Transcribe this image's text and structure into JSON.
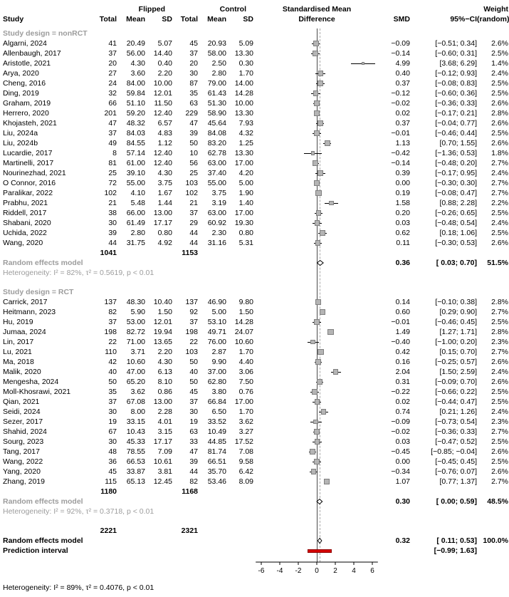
{
  "header": {
    "study": "Study",
    "flipped": "Flipped",
    "control": "Control",
    "total": "Total",
    "mean": "Mean",
    "sd": "SD",
    "effect_line1": "Standardised Mean",
    "effect_line2": "Difference",
    "smd": "SMD",
    "ci": "95%−CI",
    "weight_line1": "Weight",
    "weight_line2": "(random)"
  },
  "chart_data": {
    "type": "forest",
    "effect_label": "Standardised Mean Difference",
    "x_ticks": [
      -6,
      -4,
      -2,
      0,
      2,
      4,
      6
    ],
    "x_range": [
      -6.6,
      6.6
    ],
    "reference_line": 0,
    "overall_effect_line": 0.32,
    "colors": {
      "square": "#b4b4b4",
      "square_border": "#808080",
      "prediction_bar": "#d40000",
      "gray_text": "#9c9c9c"
    },
    "study_columns": [
      "study",
      "flipped_total",
      "flipped_mean",
      "flipped_sd",
      "control_total",
      "control_mean",
      "control_sd",
      "smd_text",
      "ci_text",
      "weight_text",
      "smd",
      "ci_low",
      "ci_high",
      "weight_pct"
    ],
    "groups": [
      {
        "label": "Study design = nonRCT",
        "studies": [
          [
            "Algarni, 2024",
            "41",
            "20.49",
            "5.07",
            "45",
            "20.93",
            "5.09",
            "−0.09",
            "[−0.51; 0.34]",
            "2.6%",
            -0.09,
            -0.51,
            0.34,
            2.6
          ],
          [
            "Allenbaugh, 2017",
            "37",
            "56.00",
            "14.40",
            "37",
            "58.00",
            "13.30",
            "−0.14",
            "[−0.60; 0.31]",
            "2.5%",
            -0.14,
            -0.6,
            0.31,
            2.5
          ],
          [
            "Aristotle, 2021",
            "20",
            "4.30",
            "0.40",
            "20",
            "2.50",
            "0.30",
            "4.99",
            "[3.68; 6.29]",
            "1.4%",
            4.99,
            3.68,
            6.29,
            1.4
          ],
          [
            "Arya, 2020",
            "27",
            "3.60",
            "2.20",
            "30",
            "2.80",
            "1.70",
            "0.40",
            "[−0.12; 0.93]",
            "2.4%",
            0.4,
            -0.12,
            0.93,
            2.4
          ],
          [
            "Cheng, 2016",
            "24",
            "84.00",
            "10.00",
            "87",
            "79.00",
            "14.00",
            "0.37",
            "[−0.08; 0.83]",
            "2.5%",
            0.37,
            -0.08,
            0.83,
            2.5
          ],
          [
            "Ding, 2019",
            "32",
            "59.84",
            "12.01",
            "35",
            "61.43",
            "14.28",
            "−0.12",
            "[−0.60; 0.36]",
            "2.5%",
            -0.12,
            -0.6,
            0.36,
            2.5
          ],
          [
            "Graham, 2019",
            "66",
            "51.10",
            "11.50",
            "63",
            "51.30",
            "10.00",
            "−0.02",
            "[−0.36; 0.33]",
            "2.6%",
            -0.02,
            -0.36,
            0.33,
            2.6
          ],
          [
            "Herrero, 2020",
            "201",
            "59.20",
            "12.40",
            "229",
            "58.90",
            "13.30",
            "0.02",
            "[−0.17; 0.21]",
            "2.8%",
            0.02,
            -0.17,
            0.21,
            2.8
          ],
          [
            "Khojasteh, 2021",
            "47",
            "48.32",
            "6.57",
            "47",
            "45.64",
            "7.93",
            "0.37",
            "[−0.04; 0.77]",
            "2.6%",
            0.37,
            -0.04,
            0.77,
            2.6
          ],
          [
            "Liu, 2024a",
            "37",
            "84.03",
            "4.83",
            "39",
            "84.08",
            "4.32",
            "−0.01",
            "[−0.46; 0.44]",
            "2.5%",
            -0.01,
            -0.46,
            0.44,
            2.5
          ],
          [
            "Liu, 2024b",
            "49",
            "84.55",
            "1.12",
            "50",
            "83.20",
            "1.25",
            "1.13",
            "[0.70; 1.55]",
            "2.6%",
            1.13,
            0.7,
            1.55,
            2.6
          ],
          [
            "Lucardie, 2017",
            "8",
            "57.14",
            "12.40",
            "10",
            "62.78",
            "13.30",
            "−0.42",
            "[−1.36; 0.53]",
            "1.8%",
            -0.42,
            -1.36,
            0.53,
            1.8
          ],
          [
            "Martinelli, 2017",
            "81",
            "61.00",
            "12.40",
            "56",
            "63.00",
            "17.00",
            "−0.14",
            "[−0.48; 0.20]",
            "2.7%",
            -0.14,
            -0.48,
            0.2,
            2.7
          ],
          [
            "Nourinezhad, 2021",
            "25",
            "39.10",
            "4.30",
            "25",
            "37.40",
            "4.20",
            "0.39",
            "[−0.17; 0.95]",
            "2.4%",
            0.39,
            -0.17,
            0.95,
            2.4
          ],
          [
            "O Connor, 2016",
            "72",
            "55.00",
            "3.75",
            "103",
            "55.00",
            "5.00",
            "0.00",
            "[−0.30; 0.30]",
            "2.7%",
            0.0,
            -0.3,
            0.3,
            2.7
          ],
          [
            "Paralikar, 2022",
            "102",
            "4.10",
            "1.67",
            "102",
            "3.75",
            "1.90",
            "0.19",
            "[−0.08; 0.47]",
            "2.7%",
            0.19,
            -0.08,
            0.47,
            2.7
          ],
          [
            "Prabhu, 2021",
            "21",
            "5.48",
            "1.44",
            "21",
            "3.19",
            "1.40",
            "1.58",
            "[0.88; 2.28]",
            "2.2%",
            1.58,
            0.88,
            2.28,
            2.2
          ],
          [
            "Riddell, 2017",
            "38",
            "66.00",
            "13.00",
            "37",
            "63.00",
            "17.00",
            "0.20",
            "[−0.26; 0.65]",
            "2.5%",
            0.2,
            -0.26,
            0.65,
            2.5
          ],
          [
            "Shabani, 2020",
            "30",
            "61.49",
            "17.17",
            "29",
            "60.92",
            "19.30",
            "0.03",
            "[−0.48; 0.54]",
            "2.4%",
            0.03,
            -0.48,
            0.54,
            2.4
          ],
          [
            "Uchida, 2022",
            "39",
            "2.80",
            "0.80",
            "44",
            "2.30",
            "0.80",
            "0.62",
            "[0.18; 1.06]",
            "2.5%",
            0.62,
            0.18,
            1.06,
            2.5
          ],
          [
            "Wang, 2020",
            "44",
            "31.75",
            "4.92",
            "44",
            "31.16",
            "5.31",
            "0.11",
            "[−0.30; 0.53]",
            "2.6%",
            0.11,
            -0.3,
            0.53,
            2.6
          ]
        ],
        "totals": {
          "flipped": "1041",
          "control": "1153"
        },
        "summary": {
          "label": "Random effects model",
          "smd": 0.36,
          "lo": 0.03,
          "hi": 0.7,
          "smd_txt": "0.36",
          "ci_txt": "[ 0.03; 0.70]",
          "w_txt": "51.5%"
        },
        "heterogeneity": "Heterogeneity: I² = 82%, τ² = 0.5619, p < 0.01"
      },
      {
        "label": "Study design = RCT",
        "studies": [
          [
            "Carrick, 2017",
            "137",
            "48.30",
            "10.40",
            "137",
            "46.90",
            "9.80",
            "0.14",
            "[−0.10; 0.38]",
            "2.8%",
            0.14,
            -0.1,
            0.38,
            2.8
          ],
          [
            "Heitmann, 2023",
            "82",
            "5.90",
            "1.50",
            "92",
            "5.00",
            "1.50",
            "0.60",
            "[0.29; 0.90]",
            "2.7%",
            0.6,
            0.29,
            0.9,
            2.7
          ],
          [
            "Hu, 2019",
            "37",
            "53.00",
            "12.01",
            "37",
            "53.10",
            "14.28",
            "−0.01",
            "[−0.46; 0.45]",
            "2.5%",
            -0.01,
            -0.46,
            0.45,
            2.5
          ],
          [
            "Jumaa, 2024",
            "198",
            "82.72",
            "19.94",
            "198",
            "49.71",
            "24.07",
            "1.49",
            "[1.27; 1.71]",
            "2.8%",
            1.49,
            1.27,
            1.71,
            2.8
          ],
          [
            "Lin, 2017",
            "22",
            "71.00",
            "13.65",
            "22",
            "76.00",
            "10.60",
            "−0.40",
            "[−1.00; 0.20]",
            "2.3%",
            -0.4,
            -1.0,
            0.2,
            2.3
          ],
          [
            "Lu, 2021",
            "110",
            "3.71",
            "2.20",
            "103",
            "2.87",
            "1.70",
            "0.42",
            "[0.15; 0.70]",
            "2.7%",
            0.42,
            0.15,
            0.7,
            2.7
          ],
          [
            "Ma, 2018",
            "42",
            "10.60",
            "4.30",
            "50",
            "9.90",
            "4.40",
            "0.16",
            "[−0.25; 0.57]",
            "2.6%",
            0.16,
            -0.25,
            0.57,
            2.6
          ],
          [
            "Malik, 2020",
            "40",
            "47.00",
            "6.13",
            "40",
            "37.00",
            "3.06",
            "2.04",
            "[1.50; 2.59]",
            "2.4%",
            2.04,
            1.5,
            2.59,
            2.4
          ],
          [
            "Mengesha, 2024",
            "50",
            "65.20",
            "8.10",
            "50",
            "62.80",
            "7.50",
            "0.31",
            "[−0.09; 0.70]",
            "2.6%",
            0.31,
            -0.09,
            0.7,
            2.6
          ],
          [
            "Moll-Khosrawi, 2021",
            "35",
            "3.62",
            "0.86",
            "45",
            "3.80",
            "0.76",
            "−0.22",
            "[−0.66; 0.22]",
            "2.5%",
            -0.22,
            -0.66,
            0.22,
            2.5
          ],
          [
            "Qian, 2021",
            "37",
            "67.08",
            "13.00",
            "37",
            "66.84",
            "17.00",
            "0.02",
            "[−0.44; 0.47]",
            "2.5%",
            0.02,
            -0.44,
            0.47,
            2.5
          ],
          [
            "Seidi, 2024",
            "30",
            "8.00",
            "2.28",
            "30",
            "6.50",
            "1.70",
            "0.74",
            "[0.21; 1.26]",
            "2.4%",
            0.74,
            0.21,
            1.26,
            2.4
          ],
          [
            "Sezer, 2017",
            "19",
            "33.15",
            "4.01",
            "19",
            "33.52",
            "3.62",
            "−0.09",
            "[−0.73; 0.54]",
            "2.3%",
            -0.09,
            -0.73,
            0.54,
            2.3
          ],
          [
            "Shahid, 2024",
            "67",
            "10.43",
            "3.15",
            "63",
            "10.49",
            "3.27",
            "−0.02",
            "[−0.36; 0.33]",
            "2.7%",
            -0.02,
            -0.36,
            0.33,
            2.7
          ],
          [
            "Sourg, 2023",
            "30",
            "45.33",
            "17.17",
            "33",
            "44.85",
            "17.52",
            "0.03",
            "[−0.47; 0.52]",
            "2.5%",
            0.03,
            -0.47,
            0.52,
            2.5
          ],
          [
            "Tang, 2017",
            "48",
            "78.55",
            "7.09",
            "47",
            "81.74",
            "7.08",
            "−0.45",
            "[−0.85; −0.04]",
            "2.6%",
            -0.45,
            -0.85,
            -0.04,
            2.6
          ],
          [
            "Wang, 2022",
            "36",
            "66.53",
            "10.61",
            "39",
            "66.51",
            "9.58",
            "0.00",
            "[−0.45; 0.45]",
            "2.5%",
            0.0,
            -0.45,
            0.45,
            2.5
          ],
          [
            "Yang, 2020",
            "45",
            "33.87",
            "3.81",
            "44",
            "35.70",
            "6.42",
            "−0.34",
            "[−0.76; 0.07]",
            "2.6%",
            -0.34,
            -0.76,
            0.07,
            2.6
          ],
          [
            "Zhang, 2019",
            "115",
            "65.13",
            "12.45",
            "82",
            "53.46",
            "8.09",
            "1.07",
            "[0.77; 1.37]",
            "2.7%",
            1.07,
            0.77,
            1.37,
            2.7
          ]
        ],
        "totals": {
          "flipped": "1180",
          "control": "1168"
        },
        "summary": {
          "label": "Random effects model",
          "smd": 0.3,
          "lo": 0.0,
          "hi": 0.59,
          "smd_txt": "0.30",
          "ci_txt": "[ 0.00; 0.59]",
          "w_txt": "48.5%"
        },
        "heterogeneity": "Heterogeneity: I² = 92%, τ² = 0.3718, p < 0.01"
      }
    ],
    "overall": {
      "totals": {
        "flipped": "2221",
        "control": "2321"
      },
      "summary": {
        "label": "Random effects model",
        "smd": 0.32,
        "lo": 0.11,
        "hi": 0.53,
        "smd_txt": "0.32",
        "ci_txt": "[ 0.11; 0.53]",
        "w_txt": "100.0%"
      },
      "prediction": {
        "label": "Prediction interval",
        "lo": -0.99,
        "hi": 1.63,
        "ci_txt": "[−0.99; 1.63]"
      },
      "heterogeneity": "Heterogeneity: I² = 89%, τ² = 0.4076, p < 0.01"
    }
  }
}
